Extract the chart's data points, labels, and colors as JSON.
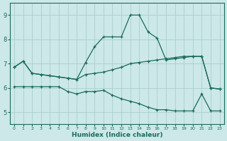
{
  "xlabel": "Humidex (Indice chaleur)",
  "xlim": [
    -0.5,
    23.5
  ],
  "ylim": [
    4.5,
    9.5
  ],
  "yticks": [
    5,
    6,
    7,
    8,
    9
  ],
  "xticks": [
    0,
    1,
    2,
    3,
    4,
    5,
    6,
    7,
    8,
    9,
    10,
    11,
    12,
    13,
    14,
    15,
    16,
    17,
    18,
    19,
    20,
    21,
    22,
    23
  ],
  "bg_color": "#cce8e8",
  "line_color": "#1a6b5a",
  "grid_color": "#aacece",
  "line1_x": [
    0,
    1,
    2,
    3,
    4,
    5,
    6,
    7,
    8,
    9,
    10,
    11,
    12,
    13,
    14,
    15,
    16,
    17,
    18,
    19,
    20,
    21,
    22,
    23
  ],
  "line1_y": [
    6.85,
    7.1,
    6.6,
    6.55,
    6.5,
    6.45,
    6.4,
    6.35,
    6.55,
    6.6,
    6.65,
    6.75,
    6.85,
    7.0,
    7.05,
    7.1,
    7.15,
    7.2,
    7.25,
    7.3,
    7.3,
    7.3,
    6.0,
    5.95
  ],
  "line2_x": [
    0,
    1,
    2,
    3,
    4,
    5,
    6,
    7,
    8,
    9,
    10,
    11,
    12,
    13,
    14,
    15,
    16,
    17,
    18,
    19,
    20,
    21,
    22,
    23
  ],
  "line2_y": [
    6.85,
    7.1,
    6.6,
    6.55,
    6.5,
    6.45,
    6.4,
    6.35,
    7.05,
    7.7,
    8.1,
    8.1,
    8.1,
    9.0,
    9.0,
    8.3,
    8.05,
    7.15,
    7.2,
    7.25,
    7.3,
    7.3,
    6.0,
    5.95
  ],
  "line3_x": [
    0,
    1,
    2,
    3,
    4,
    5,
    6,
    7,
    8,
    9,
    10,
    11,
    12,
    13,
    14,
    15,
    16,
    17,
    18,
    19,
    20,
    21,
    22,
    23
  ],
  "line3_y": [
    6.05,
    6.05,
    6.05,
    6.05,
    6.05,
    6.05,
    5.85,
    5.75,
    5.85,
    5.85,
    5.9,
    5.7,
    5.55,
    5.45,
    5.35,
    5.2,
    5.1,
    5.1,
    5.05,
    5.05,
    5.05,
    5.75,
    5.05,
    5.05
  ]
}
